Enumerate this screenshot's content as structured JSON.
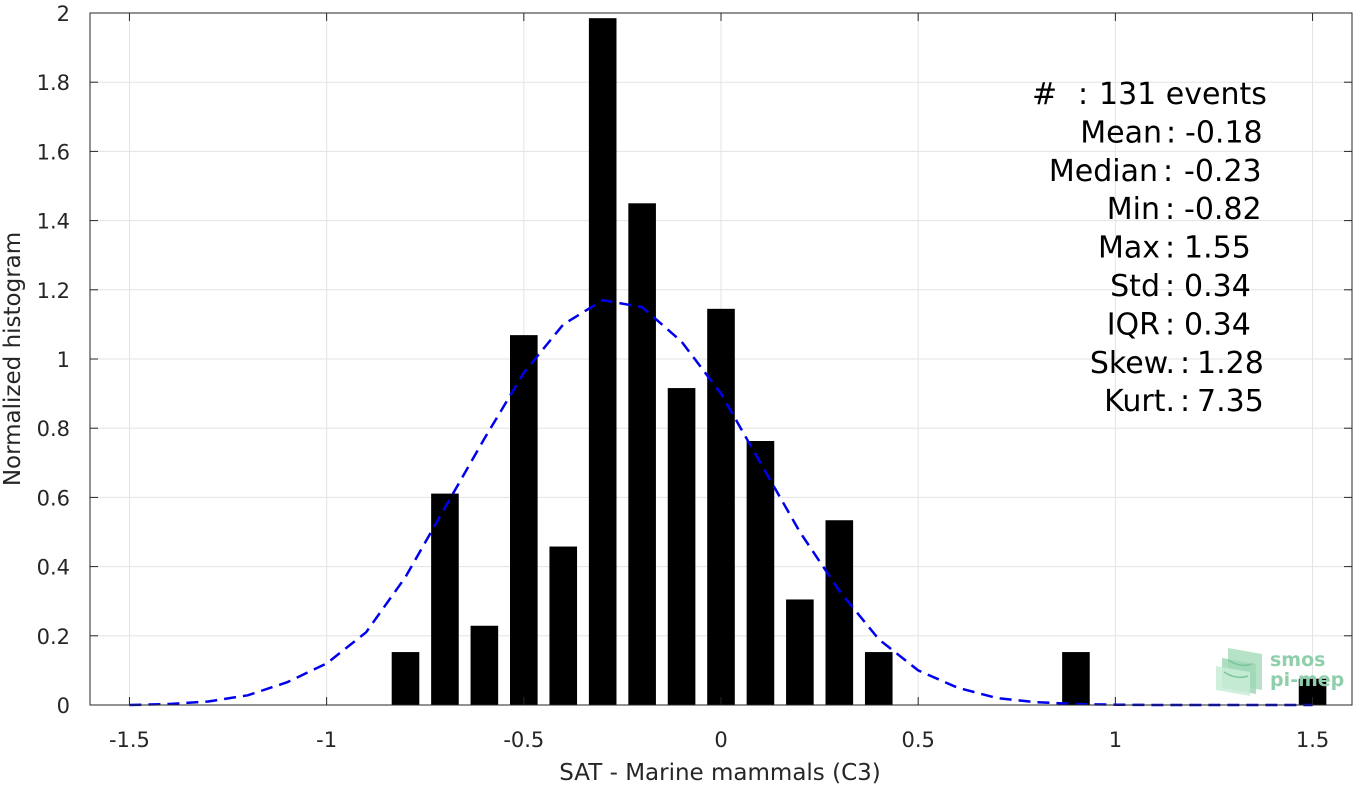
{
  "chart_data": {
    "type": "bar",
    "xlabel": "SAT - Marine mammals (C3)",
    "ylabel": "Normalized histogram",
    "xlim": [
      -1.6,
      1.6
    ],
    "ylim": [
      0,
      2
    ],
    "xticks": [
      -1.5,
      -1,
      -0.5,
      0,
      0.5,
      1,
      1.5
    ],
    "xtick_labels": [
      "-1.5",
      "-1",
      "-0.5",
      "0",
      "0.5",
      "1",
      "1.5"
    ],
    "yticks": [
      0,
      0.2,
      0.4,
      0.6,
      0.8,
      1,
      1.2,
      1.4,
      1.6,
      1.8,
      2
    ],
    "ytick_labels": [
      "0",
      "0.2",
      "0.4",
      "0.6",
      "0.8",
      "1",
      "1.2",
      "1.4",
      "1.6",
      "1.8",
      "2"
    ],
    "grid": true,
    "bar_color": "#000000",
    "bar_width": 0.07,
    "bars": [
      {
        "x": -0.8,
        "value": 0.153
      },
      {
        "x": -0.7,
        "value": 0.611
      },
      {
        "x": -0.6,
        "value": 0.229
      },
      {
        "x": -0.5,
        "value": 1.069
      },
      {
        "x": -0.4,
        "value": 0.458
      },
      {
        "x": -0.3,
        "value": 1.985
      },
      {
        "x": -0.2,
        "value": 1.45
      },
      {
        "x": -0.1,
        "value": 0.916
      },
      {
        "x": 0.0,
        "value": 1.145
      },
      {
        "x": 0.1,
        "value": 0.763
      },
      {
        "x": 0.2,
        "value": 0.305
      },
      {
        "x": 0.3,
        "value": 0.534
      },
      {
        "x": 0.4,
        "value": 0.153
      },
      {
        "x": 0.9,
        "value": 0.153
      },
      {
        "x": 1.5,
        "value": 0.076
      }
    ],
    "fit_line": {
      "style": "dashed",
      "color": "#0000ee",
      "x": [
        -1.5,
        -1.4,
        -1.3,
        -1.2,
        -1.1,
        -1.0,
        -0.9,
        -0.8,
        -0.7,
        -0.6,
        -0.5,
        -0.4,
        -0.3,
        -0.2,
        -0.1,
        0.0,
        0.1,
        0.2,
        0.3,
        0.4,
        0.5,
        0.6,
        0.7,
        0.8,
        0.9,
        1.0,
        1.1,
        1.2,
        1.3,
        1.4,
        1.5
      ],
      "y": [
        0.0,
        0.003,
        0.01,
        0.028,
        0.066,
        0.12,
        0.21,
        0.37,
        0.57,
        0.77,
        0.96,
        1.1,
        1.17,
        1.15,
        1.05,
        0.9,
        0.7,
        0.5,
        0.33,
        0.19,
        0.1,
        0.05,
        0.02,
        0.008,
        0.003,
        0.001,
        0.0,
        0.0,
        0.0,
        0.0,
        0.0
      ]
    },
    "stats": [
      {
        "label": "#  ",
        "value": "131 events"
      },
      {
        "label": "Mean ",
        "value": "-0.18"
      },
      {
        "label": "Median ",
        "value": "-0.23"
      },
      {
        "label": "Min ",
        "value": "-0.82"
      },
      {
        "label": "Max ",
        "value": "1.55"
      },
      {
        "label": "Std ",
        "value": "0.34"
      },
      {
        "label": "IQR ",
        "value": "0.34"
      },
      {
        "label": "Skew. ",
        "value": "1.28"
      },
      {
        "label": "Kurt. ",
        "value": "7.35"
      }
    ]
  },
  "logo": {
    "line1": "smos",
    "line2": "pi-mep",
    "icon": "smos-pi-mep-logo-icon",
    "color": "#8fcfab"
  }
}
